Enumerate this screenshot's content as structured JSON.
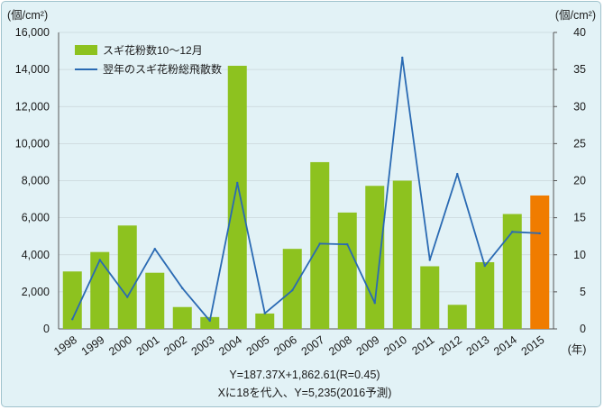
{
  "chart_data": {
    "type": "bar",
    "left_unit": "(個/cm²)",
    "right_unit": "(個/cm²)",
    "x_unit": "(年)",
    "categories": [
      "1998",
      "1999",
      "2000",
      "2001",
      "2002",
      "2003",
      "2004",
      "2005",
      "2006",
      "2007",
      "2008",
      "2009",
      "2010",
      "2011",
      "2012",
      "2013",
      "2014",
      "2015"
    ],
    "ylim": [
      0,
      16000
    ],
    "y2lim": [
      0,
      40
    ],
    "y_ticks": [
      "0",
      "2,000",
      "4,000",
      "6,000",
      "8,000",
      "10,000",
      "12,000",
      "14,000",
      "16,000"
    ],
    "y2_ticks": [
      "0",
      "5",
      "10",
      "15",
      "20",
      "25",
      "30",
      "35",
      "40"
    ],
    "series": [
      {
        "name": "スギ花粉数10～12月",
        "type": "bar",
        "axis": "left",
        "color": "#8dc21f",
        "highlight_color": "#f07c00",
        "highlight_index": 17,
        "values": [
          3100,
          4150,
          5580,
          3030,
          1180,
          640,
          14200,
          830,
          4320,
          9000,
          6280,
          7720,
          8000,
          3380,
          1300,
          3600,
          6200,
          7200
        ]
      },
      {
        "name": "翌年のスギ花粉総飛散数",
        "type": "line",
        "axis": "right",
        "color": "#2a6ab3",
        "values": [
          1.3,
          9.3,
          4.3,
          10.8,
          5.5,
          1.1,
          19.7,
          2.1,
          5.2,
          11.5,
          11.4,
          3.5,
          36.6,
          9.3,
          20.9,
          8.5,
          13.1,
          12.9
        ]
      }
    ],
    "annotations": [
      "Y=187.37X+1,862.61(R=0.45)",
      "Xに18を代入、Y=5,235(2016予測)"
    ],
    "grid": true,
    "legend_position": "top-left"
  }
}
